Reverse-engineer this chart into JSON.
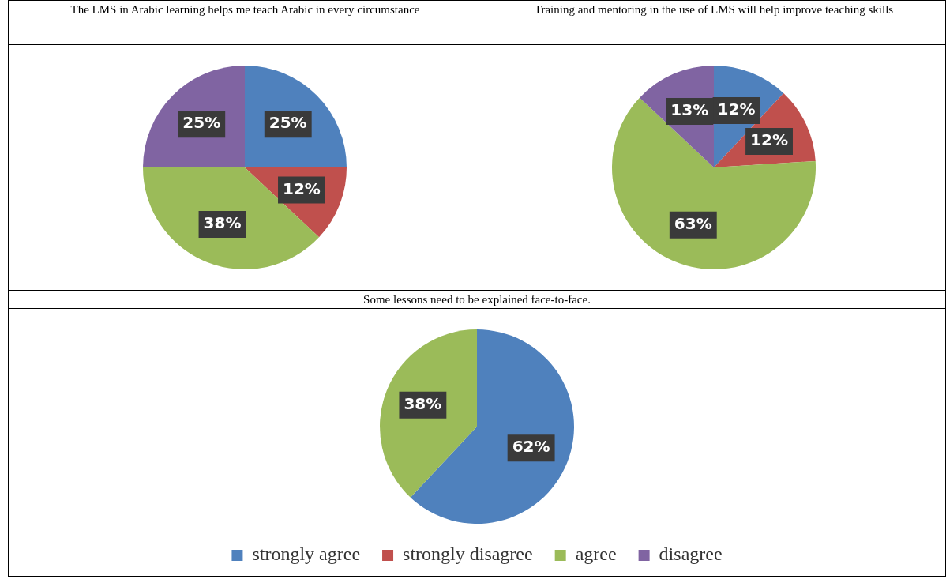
{
  "chart_data": [
    {
      "type": "pie",
      "title": "The LMS in Arabic learning helps me teach Arabic in every circumstance",
      "categories": [
        null,
        null,
        null,
        null
      ],
      "values": [
        25,
        12,
        38,
        25
      ],
      "value_labels": [
        "25%",
        "12%",
        "38%",
        "25%"
      ],
      "colors": [
        "#4f81bd",
        "#c0504d",
        "#9bbb59",
        "#8064a2"
      ],
      "legend": false
    },
    {
      "type": "pie",
      "title": "Training and mentoring in the use of LMS will help improve teaching skills",
      "categories": [
        null,
        null,
        null,
        null
      ],
      "values": [
        12,
        12,
        63,
        13
      ],
      "value_labels": [
        "12%",
        "12%",
        "63%",
        "13%"
      ],
      "colors": [
        "#4f81bd",
        "#c0504d",
        "#9bbb59",
        "#8064a2"
      ],
      "legend": false
    },
    {
      "type": "pie",
      "title": "Some lessons need to be explained face-to-face.",
      "categories": [
        "strongly agree",
        "strongly disagree",
        "agree",
        "disagree"
      ],
      "values": [
        62,
        0,
        38,
        0
      ],
      "value_labels": [
        "62%",
        null,
        "38%",
        null
      ],
      "colors": [
        "#4f81bd",
        "#c0504d",
        "#9bbb59",
        "#8064a2"
      ],
      "legend": "bottom"
    }
  ]
}
